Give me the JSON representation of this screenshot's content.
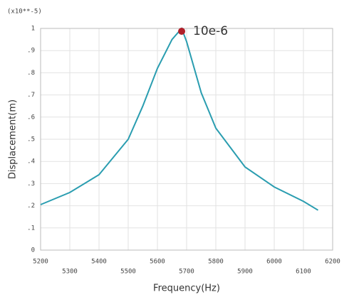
{
  "chart_data": {
    "type": "line",
    "multiplier": "(x10**-5)",
    "xlabel": "Frequency(Hz)",
    "ylabel": "Displacement(m)",
    "x": [
      5200,
      5300,
      5400,
      5500,
      5550,
      5600,
      5650,
      5683,
      5700,
      5750,
      5800,
      5900,
      6000,
      6100,
      6150
    ],
    "values": [
      0.205,
      0.26,
      0.34,
      0.5,
      0.65,
      0.82,
      0.95,
      1,
      0.94,
      0.71,
      0.55,
      0.375,
      0.285,
      0.22,
      0.18
    ],
    "color": "#2a9db0",
    "annotation": {
      "text": "10e-6",
      "x": 5683,
      "y": 1,
      "color": "#b0202a"
    },
    "xlim": [
      5200,
      6200
    ],
    "ylim": [
      0,
      1
    ],
    "xticks": [
      5200,
      5300,
      5400,
      5500,
      5600,
      5700,
      5800,
      5900,
      6000,
      6100,
      6200
    ],
    "yticks": [
      0,
      {
        "value": 0.1,
        "label": ".1"
      },
      {
        "value": 0.2,
        "label": ".2"
      },
      {
        "value": 0.3,
        "label": ".3"
      },
      {
        "value": 0.4,
        "label": ".4"
      },
      {
        "value": 0.5,
        "label": ".5"
      },
      {
        "value": 0.6,
        "label": ".6"
      },
      {
        "value": 0.7,
        "label": ".7"
      },
      {
        "value": 0.8,
        "label": ".8"
      },
      {
        "value": 0.9,
        "label": ".9"
      },
      1
    ],
    "grid": true
  }
}
